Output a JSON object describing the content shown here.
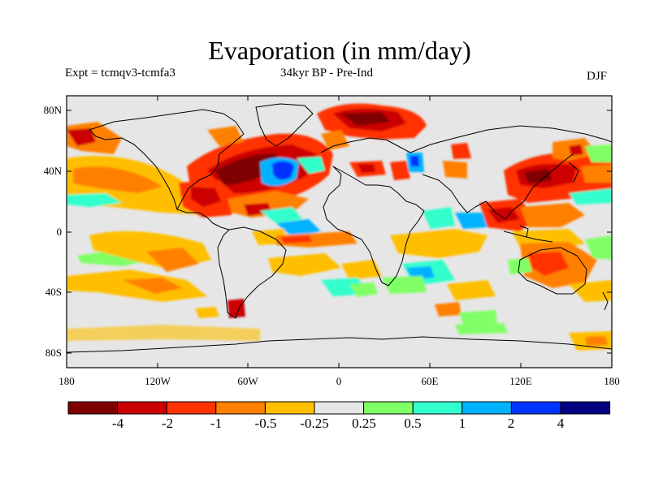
{
  "header": {
    "title": "Evaporation (in mm/day)",
    "experiment": "Expt = tcmqv3-tcmfa3",
    "period": "34kyr BP - Pre-Ind",
    "season": "DJF"
  },
  "axes": {
    "y_ticks": [
      "80N",
      "40N",
      "0",
      "40S",
      "80S"
    ],
    "x_ticks": [
      "180",
      "120W",
      "60W",
      "0",
      "60E",
      "120E",
      "180"
    ]
  },
  "colorbar": {
    "labels": [
      "-4",
      "-2",
      "-1",
      "-0.5",
      "-0.25",
      "0.25",
      "0.5",
      "1",
      "2",
      "4"
    ],
    "colors": [
      "#7f0000",
      "#cc0000",
      "#ff3300",
      "#ff8000",
      "#ffbf00",
      "#e6e6e6",
      "#80ff66",
      "#33ffcc",
      "#00b3ff",
      "#0033ff",
      "#000080"
    ]
  },
  "chart_data": {
    "type": "map",
    "variable": "Evaporation (in mm/day)",
    "projection": "cylindrical equidistant",
    "lon_range": [
      -180,
      180
    ],
    "lat_range": [
      -90,
      90
    ],
    "levels": [
      -4,
      -2,
      -1,
      -0.5,
      -0.25,
      0.25,
      0.5,
      1,
      2,
      4
    ],
    "background_color": "#e6e6e6"
  }
}
